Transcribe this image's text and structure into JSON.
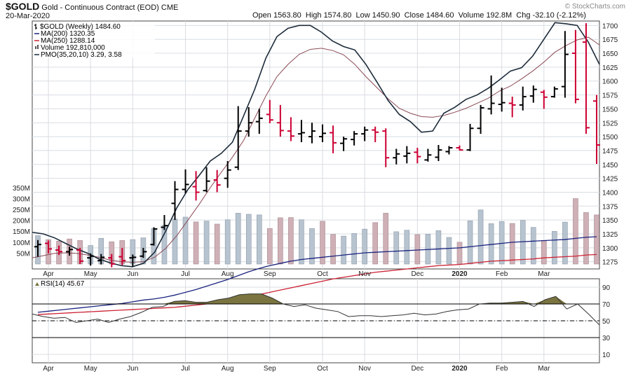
{
  "header": {
    "symbol": "$GOLD",
    "name": "Gold - Continuous Contract (EOD)",
    "exchange": "CME",
    "date": "20-Mar-2020",
    "watermark": "© StockCharts.com",
    "open_label": "Open",
    "open": "1563.80",
    "high_label": "High",
    "high": "1574.80",
    "low_label": "Low",
    "low": "1450.90",
    "close_label": "Close",
    "close": "1484.60",
    "volume_label": "Volume",
    "volume": "192.8M",
    "chg_label": "Chg",
    "chg": "-32.10 (-2.12%)"
  },
  "legend": {
    "price": "$GOLD (Weekly) 1484.60",
    "ma200": "MA(200) 1320.35",
    "ma250": "MA(250) 1288.14",
    "volume": "Volume 192,810,000",
    "pmo": "PMO(35,20,10) 3.29, 3.58",
    "rsi": "RSI(14) 45.67"
  },
  "colors": {
    "up": "#000000",
    "down": "#cc0033",
    "ma200": "#1a237e",
    "ma250": "#cc2233",
    "pmo": "#1c2b3a",
    "pmo_signal": "#8a4a55",
    "vol_up": "#b7c3cf",
    "vol_down": "#ceb0b6",
    "rsi_fill": "#7a7440",
    "grid": "#d8dde2"
  },
  "chart_data": [
    {
      "type": "ohlc",
      "title": "$GOLD (Weekly) 1484.60",
      "x_tick_labels": [
        "Apr",
        "May",
        "Jun",
        "Jul",
        "Aug",
        "Sep",
        "Oct",
        "Nov",
        "Dec",
        "2020",
        "Feb",
        "Mar"
      ],
      "y_ticks": [
        1275,
        1300,
        1325,
        1350,
        1375,
        1400,
        1425,
        1450,
        1475,
        1500,
        1525,
        1550,
        1575,
        1600,
        1625,
        1650,
        1675,
        1700
      ],
      "ylim": [
        1262,
        1708
      ],
      "bars": [
        {
          "o": 1302,
          "h": 1314,
          "l": 1284,
          "c": 1306
        },
        {
          "o": 1308,
          "h": 1313,
          "l": 1290,
          "c": 1298
        },
        {
          "o": 1296,
          "h": 1304,
          "l": 1287,
          "c": 1293
        },
        {
          "o": 1293,
          "h": 1302,
          "l": 1286,
          "c": 1297
        },
        {
          "o": 1296,
          "h": 1300,
          "l": 1271,
          "c": 1276
        },
        {
          "o": 1282,
          "h": 1290,
          "l": 1268,
          "c": 1285
        },
        {
          "o": 1277,
          "h": 1289,
          "l": 1270,
          "c": 1283
        },
        {
          "o": 1282,
          "h": 1289,
          "l": 1265,
          "c": 1271
        },
        {
          "o": 1284,
          "h": 1300,
          "l": 1269,
          "c": 1277
        },
        {
          "o": 1282,
          "h": 1288,
          "l": 1266,
          "c": 1283
        },
        {
          "o": 1285,
          "h": 1300,
          "l": 1282,
          "c": 1293
        },
        {
          "o": 1306,
          "h": 1337,
          "l": 1304,
          "c": 1334
        },
        {
          "o": 1337,
          "h": 1359,
          "l": 1332,
          "c": 1340
        },
        {
          "o": 1380,
          "h": 1420,
          "l": 1350,
          "c": 1405
        },
        {
          "o": 1405,
          "h": 1441,
          "l": 1398,
          "c": 1414
        },
        {
          "o": 1410,
          "h": 1438,
          "l": 1385,
          "c": 1400
        },
        {
          "o": 1403,
          "h": 1445,
          "l": 1400,
          "c": 1420
        },
        {
          "o": 1422,
          "h": 1440,
          "l": 1400,
          "c": 1413
        },
        {
          "o": 1425,
          "h": 1456,
          "l": 1408,
          "c": 1440
        },
        {
          "o": 1445,
          "h": 1555,
          "l": 1440,
          "c": 1510
        },
        {
          "o": 1510,
          "h": 1553,
          "l": 1500,
          "c": 1525
        },
        {
          "o": 1527,
          "h": 1550,
          "l": 1505,
          "c": 1533
        },
        {
          "o": 1540,
          "h": 1566,
          "l": 1524,
          "c": 1530
        },
        {
          "o": 1525,
          "h": 1557,
          "l": 1500,
          "c": 1511
        },
        {
          "o": 1510,
          "h": 1535,
          "l": 1492,
          "c": 1501
        },
        {
          "o": 1505,
          "h": 1530,
          "l": 1490,
          "c": 1507
        },
        {
          "o": 1500,
          "h": 1525,
          "l": 1488,
          "c": 1510
        },
        {
          "o": 1500,
          "h": 1522,
          "l": 1490,
          "c": 1506
        },
        {
          "o": 1507,
          "h": 1520,
          "l": 1470,
          "c": 1489
        },
        {
          "o": 1488,
          "h": 1500,
          "l": 1474,
          "c": 1496
        },
        {
          "o": 1495,
          "h": 1510,
          "l": 1484,
          "c": 1505
        },
        {
          "o": 1505,
          "h": 1518,
          "l": 1492,
          "c": 1512
        },
        {
          "o": 1512,
          "h": 1518,
          "l": 1490,
          "c": 1508
        },
        {
          "o": 1510,
          "h": 1515,
          "l": 1445,
          "c": 1462
        },
        {
          "o": 1462,
          "h": 1478,
          "l": 1450,
          "c": 1469
        },
        {
          "o": 1465,
          "h": 1483,
          "l": 1452,
          "c": 1470
        },
        {
          "o": 1472,
          "h": 1480,
          "l": 1452,
          "c": 1464
        },
        {
          "o": 1458,
          "h": 1478,
          "l": 1455,
          "c": 1467
        },
        {
          "o": 1463,
          "h": 1485,
          "l": 1456,
          "c": 1476
        },
        {
          "o": 1473,
          "h": 1483,
          "l": 1468,
          "c": 1480
        },
        {
          "o": 1480,
          "h": 1484,
          "l": 1475,
          "c": 1476
        },
        {
          "o": 1476,
          "h": 1523,
          "l": 1474,
          "c": 1515
        },
        {
          "o": 1515,
          "h": 1557,
          "l": 1505,
          "c": 1552
        },
        {
          "o": 1550,
          "h": 1610,
          "l": 1540,
          "c": 1560
        },
        {
          "o": 1558,
          "h": 1588,
          "l": 1545,
          "c": 1561
        },
        {
          "o": 1560,
          "h": 1572,
          "l": 1535,
          "c": 1557
        },
        {
          "o": 1557,
          "h": 1590,
          "l": 1547,
          "c": 1572
        },
        {
          "o": 1573,
          "h": 1592,
          "l": 1561,
          "c": 1585
        },
        {
          "o": 1580,
          "h": 1584,
          "l": 1550,
          "c": 1571
        },
        {
          "o": 1572,
          "h": 1590,
          "l": 1570,
          "c": 1586
        },
        {
          "o": 1590,
          "h": 1690,
          "l": 1570,
          "c": 1648
        },
        {
          "o": 1650,
          "h": 1692,
          "l": 1560,
          "c": 1567
        },
        {
          "o": 1670,
          "h": 1704,
          "l": 1505,
          "c": 1516
        },
        {
          "o": 1564,
          "h": 1575,
          "l": 1451,
          "c": 1485
        }
      ],
      "ma200": [
        1184,
        1186,
        1188,
        1190,
        1192,
        1194,
        1196,
        1198,
        1200,
        1203,
        1206,
        1208,
        1211,
        1215,
        1220,
        1225,
        1231,
        1237,
        1243,
        1250,
        1257,
        1263,
        1268,
        1272,
        1276,
        1279,
        1281,
        1283,
        1285,
        1287,
        1289,
        1291,
        1292,
        1293,
        1294,
        1295,
        1296,
        1297,
        1298,
        1299,
        1300,
        1302,
        1304,
        1306,
        1308,
        1310,
        1311,
        1312,
        1313,
        1314,
        1315,
        1317,
        1319,
        1320
      ],
      "ma250": [
        1180,
        1181,
        1182,
        1183,
        1184,
        1185,
        1186,
        1187,
        1188,
        1189,
        1190,
        1191,
        1192,
        1193,
        1195,
        1197,
        1199,
        1202,
        1205,
        1208,
        1212,
        1216,
        1220,
        1224,
        1228,
        1232,
        1236,
        1240,
        1244,
        1247,
        1250,
        1253,
        1256,
        1258,
        1260,
        1262,
        1264,
        1266,
        1268,
        1269,
        1270,
        1272,
        1274,
        1276,
        1277,
        1278,
        1279,
        1280,
        1282,
        1283,
        1284,
        1285,
        1287,
        1288
      ],
      "volume_millions": [
        130,
        112,
        105,
        115,
        108,
        85,
        118,
        102,
        108,
        112,
        120,
        163,
        178,
        206,
        215,
        193,
        197,
        183,
        203,
        233,
        228,
        225,
        163,
        212,
        213,
        203,
        163,
        196,
        136,
        128,
        140,
        160,
        190,
        233,
        148,
        155,
        135,
        137,
        153,
        122,
        100,
        198,
        248,
        185,
        195,
        186,
        200,
        168,
        106,
        150,
        192,
        300,
        236,
        225,
        193
      ],
      "volume_up": [
        true,
        false,
        false,
        false,
        false,
        true,
        true,
        false,
        false,
        true,
        true,
        true,
        true,
        true,
        true,
        false,
        true,
        false,
        true,
        true,
        true,
        true,
        false,
        false,
        false,
        true,
        true,
        false,
        false,
        true,
        true,
        true,
        false,
        false,
        true,
        true,
        false,
        true,
        true,
        true,
        false,
        true,
        true,
        true,
        true,
        false,
        true,
        true,
        false,
        true,
        true,
        false,
        false,
        false,
        false
      ],
      "volume_axis_labels": [
        "50M",
        "100M",
        "150M",
        "200M",
        "250M",
        "300M",
        "350M"
      ],
      "pmo": [
        1328,
        1325,
        1318,
        1308,
        1298,
        1290,
        1280,
        1273,
        1268,
        1266,
        1272,
        1292,
        1330,
        1372,
        1405,
        1430,
        1456,
        1470,
        1490,
        1537,
        1585,
        1641,
        1680,
        1695,
        1700,
        1700,
        1688,
        1672,
        1662,
        1656,
        1630,
        1598,
        1565,
        1540,
        1527,
        1508,
        1510,
        1542,
        1553,
        1567,
        1575,
        1587,
        1602,
        1618,
        1624,
        1645,
        1675,
        1705,
        1703,
        1700,
        1670,
        1630
      ],
      "pmo_signal": [
        1282,
        1286,
        1290,
        1291,
        1290,
        1287,
        1283,
        1278,
        1275,
        1274,
        1275,
        1283,
        1299,
        1322,
        1350,
        1378,
        1408,
        1436,
        1463,
        1493,
        1533,
        1573,
        1608,
        1630,
        1648,
        1657,
        1659,
        1655,
        1647,
        1630,
        1608,
        1588,
        1568,
        1551,
        1542,
        1536,
        1535,
        1538,
        1544,
        1551,
        1560,
        1569,
        1582,
        1591,
        1604,
        1618,
        1634,
        1652,
        1664,
        1674,
        1679,
        1665
      ]
    },
    {
      "type": "area",
      "title": "RSI(14) 45.67",
      "x_tick_labels": [
        "Apr",
        "May",
        "Jun",
        "Jul",
        "Aug",
        "Sep",
        "Oct",
        "Nov",
        "Dec",
        "2020",
        "Feb",
        "Mar"
      ],
      "y_ticks": [
        10,
        30,
        50,
        70,
        90
      ],
      "ylim": [
        0,
        100
      ],
      "reference_lines": [
        30,
        50,
        70
      ],
      "values": [
        58,
        55,
        53,
        54,
        48,
        50,
        52,
        48,
        52,
        55,
        60,
        66,
        67,
        73,
        74,
        72,
        72,
        75,
        77,
        81,
        82,
        82,
        77,
        70,
        67,
        69,
        65,
        63,
        61,
        55,
        56,
        56,
        55,
        56,
        57,
        59,
        57,
        58,
        61,
        63,
        64,
        70,
        71,
        71,
        72,
        73,
        67,
        75,
        79,
        64,
        70,
        58,
        45
      ]
    }
  ]
}
